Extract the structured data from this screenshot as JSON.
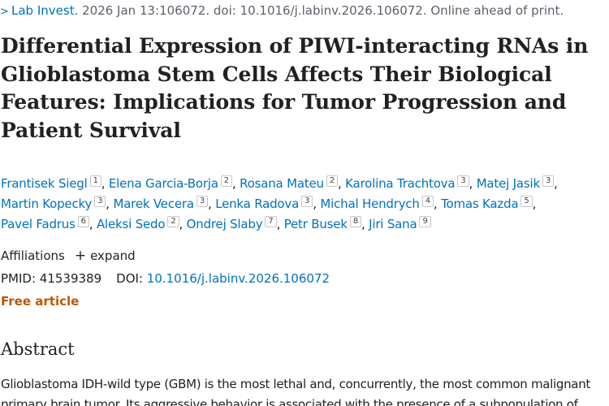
{
  "citation": {
    "chevron": ">",
    "journal": "Lab Invest.",
    "details": " 2026 Jan 13:106072. doi: 10.1016/j.labinv.2026.106072. Online ahead of print."
  },
  "title": "Differential Expression of PIWI-interacting RNAs in Glioblastoma Stem Cells Affects Their Biological Features: Implications for Tumor Progression and Patient Survival",
  "authors": [
    {
      "name": "Frantisek Siegl",
      "aff": "1"
    },
    {
      "name": "Elena Garcia-Borja",
      "aff": "2"
    },
    {
      "name": "Rosana Mateu",
      "aff": "2"
    },
    {
      "name": "Karolina Trachtova",
      "aff": "3"
    },
    {
      "name": "Matej Jasik",
      "aff": "3"
    },
    {
      "name": "Martin Kopecky",
      "aff": "3"
    },
    {
      "name": "Marek Vecera",
      "aff": "3"
    },
    {
      "name": "Lenka Radova",
      "aff": "3"
    },
    {
      "name": "Michal Hendrych",
      "aff": "4"
    },
    {
      "name": "Tomas Kazda",
      "aff": "5"
    },
    {
      "name": "Pavel Fadrus",
      "aff": "6"
    },
    {
      "name": "Aleksi Sedo",
      "aff": "2"
    },
    {
      "name": "Ondrej Slaby",
      "aff": "7"
    },
    {
      "name": "Petr Busek",
      "aff": "8"
    },
    {
      "name": "Jiri Sana",
      "aff": "9"
    }
  ],
  "affiliations": {
    "label": "Affiliations",
    "plus": "+",
    "expand": "expand"
  },
  "ids": {
    "pmid": "PMID: 41539389",
    "doi_label": "DOI:",
    "doi_value": "10.1016/j.labinv.2026.106072"
  },
  "free_article": "Free article",
  "abstract": {
    "heading": "Abstract",
    "text": "Glioblastoma IDH-wild type (GBM) is the most lethal and, concurrently, the most common malignant primary brain tumor. Its aggressive behavior is associated with the presence of a subpopulation of"
  }
}
